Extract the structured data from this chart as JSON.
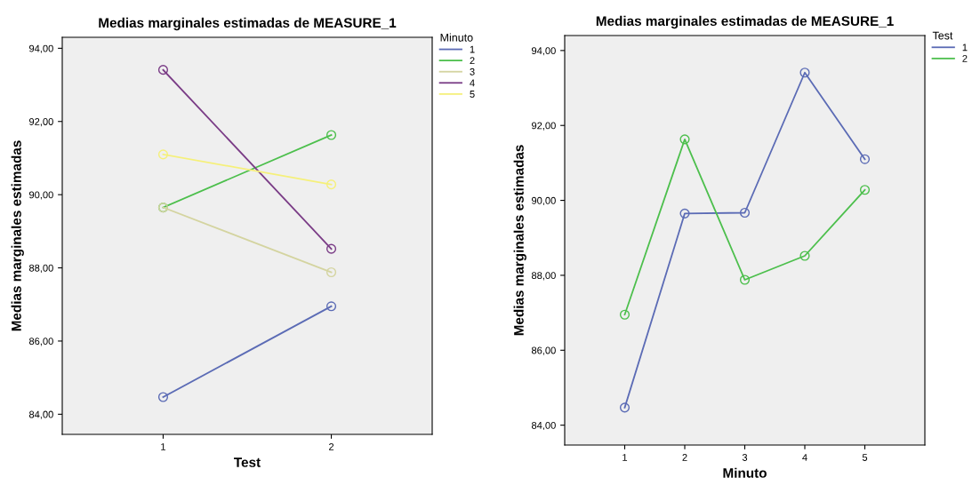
{
  "chart_data": [
    {
      "type": "line",
      "title": "Medias marginales estimadas de MEASURE_1",
      "xlabel": "Test",
      "ylabel": "Medias marginales estimadas",
      "legend_title": "Minuto",
      "legend": "right",
      "marker": "circle",
      "grid": false,
      "categories": [
        "1",
        "2"
      ],
      "ylim": [
        83.45,
        94.3
      ],
      "yticks": [
        {
          "value": 84,
          "label": "84,00"
        },
        {
          "value": 86,
          "label": "86,00"
        },
        {
          "value": 88,
          "label": "88,00"
        },
        {
          "value": 90,
          "label": "90,00"
        },
        {
          "value": 92,
          "label": "92,00"
        },
        {
          "value": 94,
          "label": "94,00"
        }
      ],
      "series": [
        {
          "name": "1",
          "color": "#5b6bb5",
          "values": [
            84.47,
            86.95
          ]
        },
        {
          "name": "2",
          "color": "#4cbf4c",
          "values": [
            89.65,
            91.63
          ]
        },
        {
          "name": "3",
          "color": "#d4d4a0",
          "values": [
            89.65,
            87.88
          ]
        },
        {
          "name": "4",
          "color": "#7a3c86",
          "values": [
            93.41,
            88.52
          ]
        },
        {
          "name": "5",
          "color": "#f5f07a",
          "values": [
            91.1,
            90.28
          ]
        }
      ]
    },
    {
      "type": "line",
      "title": "Medias marginales estimadas de MEASURE_1",
      "xlabel": "Minuto",
      "ylabel": "Medias marginales estimadas",
      "legend_title": "Test",
      "legend": "right",
      "marker": "circle",
      "grid": false,
      "categories": [
        "1",
        "2",
        "3",
        "4",
        "5"
      ],
      "ylim": [
        83.47,
        94.4
      ],
      "yticks": [
        {
          "value": 84,
          "label": "84,00"
        },
        {
          "value": 86,
          "label": "86,00"
        },
        {
          "value": 88,
          "label": "88,00"
        },
        {
          "value": 90,
          "label": "90,00"
        },
        {
          "value": 92,
          "label": "92,00"
        },
        {
          "value": 94,
          "label": "94,00"
        }
      ],
      "series": [
        {
          "name": "1",
          "color": "#5b6bb5",
          "values": [
            84.47,
            89.65,
            89.67,
            93.41,
            91.1
          ]
        },
        {
          "name": "2",
          "color": "#4cbf4c",
          "values": [
            86.95,
            91.63,
            87.88,
            88.52,
            90.28
          ]
        }
      ]
    }
  ]
}
